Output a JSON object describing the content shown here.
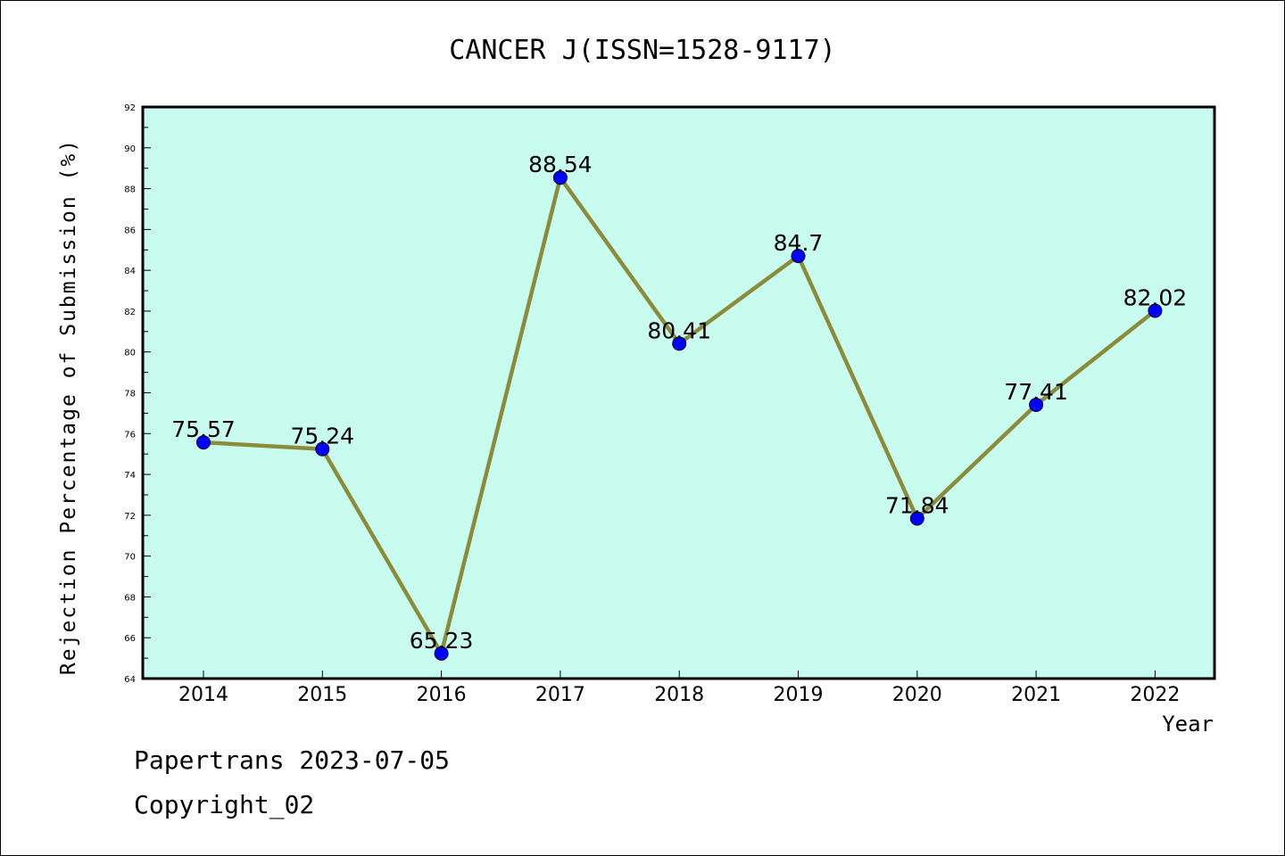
{
  "chart_data": {
    "type": "line",
    "title": "CANCER J(ISSN=1528-9117)",
    "xlabel": "Year",
    "ylabel": "Rejection Percentage of Submission (%)",
    "categories": [
      "2014",
      "2015",
      "2016",
      "2017",
      "2018",
      "2019",
      "2020",
      "2021",
      "2022"
    ],
    "values": [
      75.57,
      75.24,
      65.23,
      88.54,
      80.41,
      84.7,
      71.84,
      77.41,
      82.02
    ],
    "value_labels": [
      "75.57",
      "75.24",
      "65.23",
      "88.54",
      "80.41",
      "84.7",
      "71.84",
      "77.41",
      "82.02"
    ],
    "ylim": [
      64,
      92
    ],
    "yticks": [
      "64",
      "66",
      "68",
      "70",
      "72",
      "74",
      "76",
      "78",
      "80",
      "82",
      "84",
      "86",
      "88",
      "90",
      "92"
    ],
    "grid": false,
    "colors": {
      "plot_background": "#c8fcee",
      "line": "#8b8b3a",
      "marker": "#0000ff"
    }
  },
  "footer": {
    "line1": "Papertrans 2023-07-05",
    "line2": "Copyright_02"
  }
}
